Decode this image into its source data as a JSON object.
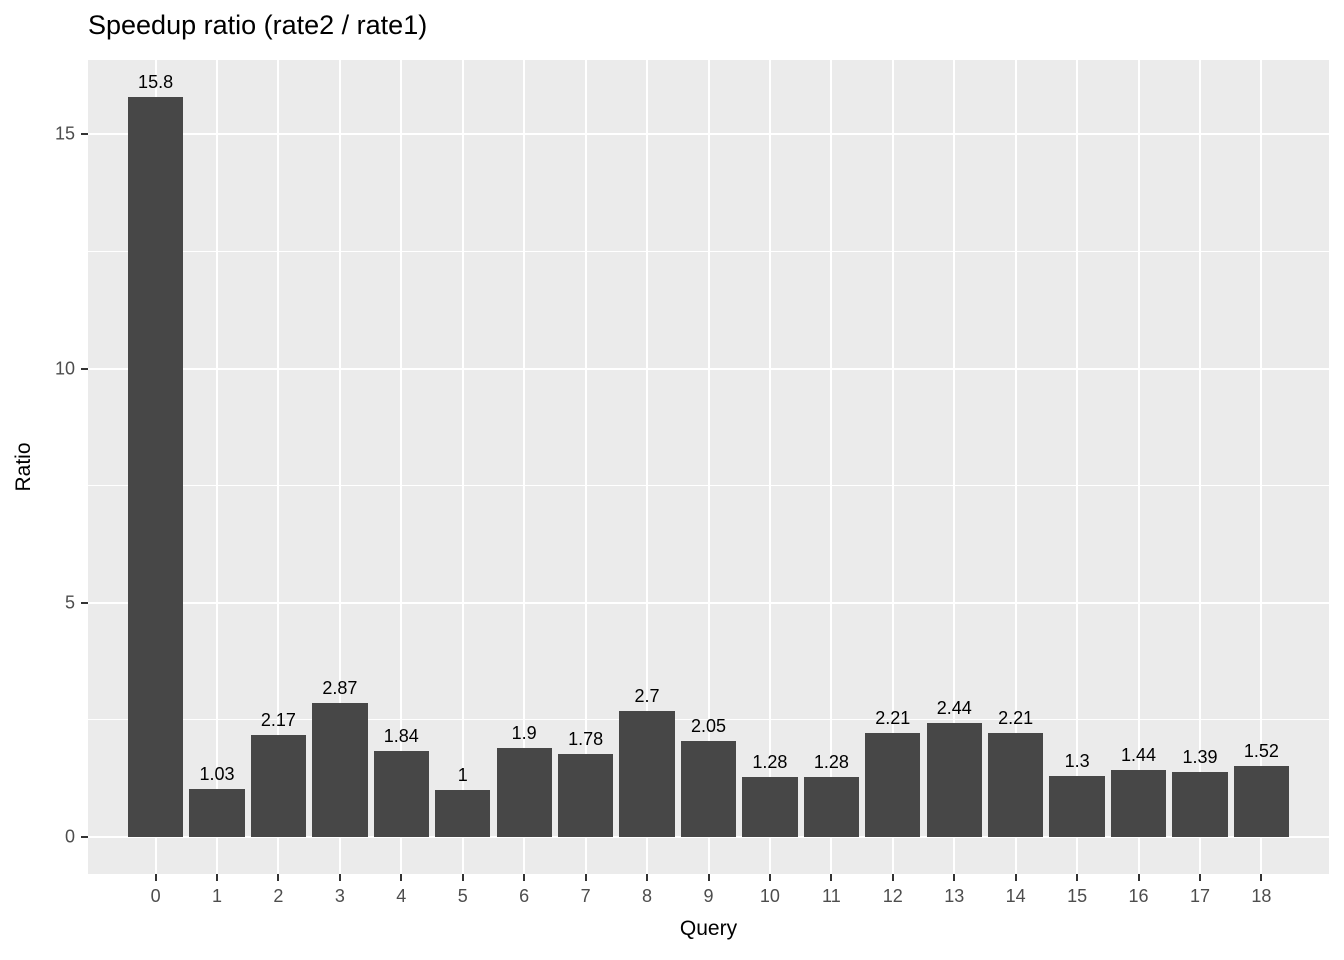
{
  "chart_data": {
    "type": "bar",
    "title": "Speedup ratio (rate2 / rate1)",
    "xlabel": "Query",
    "ylabel": "Ratio",
    "categories": [
      "0",
      "1",
      "2",
      "3",
      "4",
      "5",
      "6",
      "7",
      "8",
      "9",
      "10",
      "11",
      "12",
      "13",
      "14",
      "15",
      "16",
      "17",
      "18"
    ],
    "values": [
      15.8,
      1.03,
      2.17,
      2.87,
      1.84,
      1,
      1.9,
      1.78,
      2.7,
      2.05,
      1.28,
      1.28,
      2.21,
      2.44,
      2.21,
      1.3,
      1.44,
      1.39,
      1.52
    ],
    "bar_labels": [
      "15.8",
      "1.03",
      "2.17",
      "2.87",
      "1.84",
      "1",
      "1.9",
      "1.78",
      "2.7",
      "2.05",
      "1.28",
      "1.28",
      "2.21",
      "2.44",
      "2.21",
      "1.3",
      "1.44",
      "1.39",
      "1.52"
    ],
    "yticks": [
      0,
      5,
      10,
      15
    ],
    "minor_yticks": [
      2.5,
      7.5,
      12.5
    ],
    "ylim": [
      -0.79,
      16.59
    ],
    "bar_rel_width": 0.9,
    "x_expand": 0.6,
    "grid": "on",
    "legend_position": "none",
    "colors": {
      "bar_fill": "#474747",
      "panel_bg": "#ebebeb",
      "grid_major": "#ffffff",
      "grid_minor": "#ffffff",
      "tick_mark": "#333333",
      "tick_label": "#4d4d4d",
      "title_text": "#000000",
      "axis_title_text": "#000000",
      "bar_label_text": "#000000",
      "background": "#ffffff"
    }
  }
}
